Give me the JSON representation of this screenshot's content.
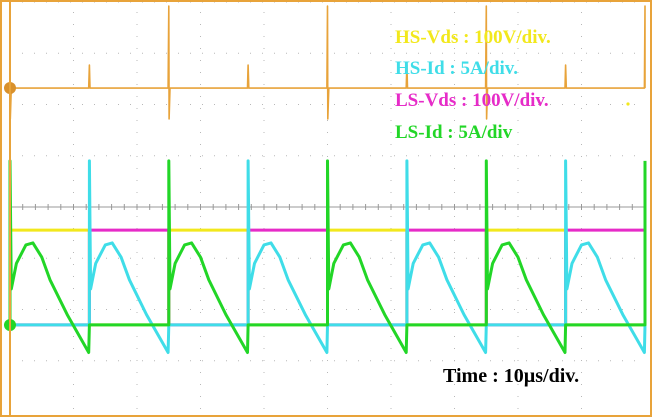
{
  "chart_data": {
    "type": "line",
    "title": "",
    "grid": true,
    "divisions": {
      "x": 10,
      "y": 8
    },
    "time_per_div_us": 10,
    "time_label": "Time : 10µs/div.",
    "xlim_us": [
      0,
      100
    ],
    "legend_placement": "top-right",
    "legend": [
      {
        "text": "HS-Vds : 100V/div.",
        "color": "#f2e81c"
      },
      {
        "text": "HS-Id : 5A/div.",
        "color": "#3fdde8"
      },
      {
        "text": "LS-Vds : 100V/div.",
        "color": "#e62bc8"
      },
      {
        "text": "LS-Id : 5A/div",
        "color": "#22d627"
      }
    ],
    "period_us": 25,
    "series": [
      {
        "name": "HS-Vds",
        "unit": "V",
        "per_div": 100,
        "ground_div": -2.3,
        "color": "#f2e81c",
        "period_points": [
          [
            0,
            185
          ],
          [
            12.5,
            185
          ],
          [
            12.5,
            0
          ],
          [
            25,
            0
          ]
        ],
        "phase_us": 0
      },
      {
        "name": "LS-Vds",
        "unit": "V",
        "per_div": 100,
        "ground_div": -2.3,
        "color": "#e62bc8",
        "period_points": [
          [
            0,
            0
          ],
          [
            12.5,
            0
          ],
          [
            12.5,
            185
          ],
          [
            25,
            185
          ]
        ],
        "phase_us": 0
      },
      {
        "name": "LS-Id",
        "unit": "A",
        "per_div": 5,
        "ground_div": -2.3,
        "color": "#22d627",
        "period_points": [
          [
            0,
            0
          ],
          [
            0,
            16
          ],
          [
            0.2,
            3.5
          ],
          [
            1,
            6
          ],
          [
            2.5,
            7.8
          ],
          [
            3.6,
            8
          ],
          [
            5,
            6.6
          ],
          [
            6.3,
            4.4
          ],
          [
            9,
            1
          ],
          [
            12.4,
            -2.7
          ],
          [
            12.5,
            0
          ],
          [
            25,
            0
          ]
        ],
        "phase_us": 0
      },
      {
        "name": "HS-Id",
        "unit": "A",
        "per_div": 5,
        "ground_div": -2.3,
        "color": "#3fdde8",
        "period_points": [
          [
            0,
            0
          ],
          [
            0,
            16
          ],
          [
            0.2,
            3.5
          ],
          [
            1,
            6
          ],
          [
            2.5,
            7.8
          ],
          [
            3.6,
            8
          ],
          [
            5,
            6.6
          ],
          [
            6.3,
            4.4
          ],
          [
            9,
            1
          ],
          [
            12.4,
            -2.7
          ],
          [
            12.5,
            0
          ],
          [
            25,
            0
          ]
        ],
        "phase_us": 12.5
      },
      {
        "unit": "div",
        "per_div": 1,
        "ground_div": 2.32,
        "color": "#e8a33a",
        "period_points": [
          [
            0,
            0
          ],
          [
            12.4,
            0
          ],
          [
            12.5,
            0.45
          ],
          [
            12.6,
            0
          ],
          [
            24.9,
            0
          ],
          [
            25,
            1.6
          ],
          [
            25.05,
            -0.6
          ],
          [
            25.2,
            0
          ]
        ],
        "phase_us": 0
      }
    ]
  },
  "colors": {
    "frame": "#e8a33a",
    "grid": "#b8b8b8"
  }
}
